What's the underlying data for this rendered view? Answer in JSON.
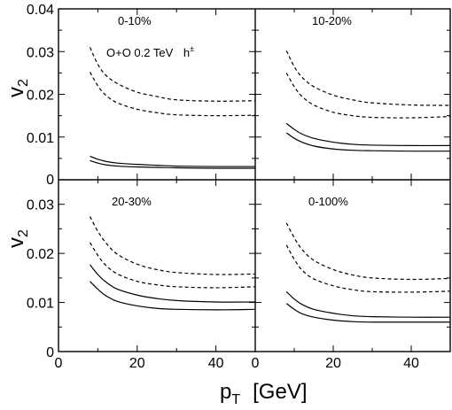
{
  "figure": {
    "annotation_main": "O+O 0.2 TeV",
    "annotation_particle": "h",
    "annotation_charge": "±",
    "ylabel_main": "v",
    "ylabel_sub": "2",
    "xlabel_main": "p",
    "xlabel_sub": "T",
    "xlabel_unit": "[GeV]",
    "xticks": [
      "0",
      "20",
      "40"
    ],
    "yticks_top": [
      "0",
      "0.01",
      "0.02",
      "0.03",
      "0.04"
    ],
    "yticks_bottom": [
      "0",
      "0.01",
      "0.02",
      "0.03"
    ]
  },
  "chart_data": [
    {
      "type": "line",
      "panel_label": "0-10%",
      "xlim": [
        0,
        50
      ],
      "ylim": [
        0,
        0.04
      ],
      "xlabel": "pT [GeV]",
      "ylabel": "v2",
      "series": [
        {
          "style": "dashed",
          "x": [
            8,
            10,
            12,
            15,
            20,
            25,
            30,
            40,
            50
          ],
          "y": [
            0.031,
            0.027,
            0.0245,
            0.0225,
            0.0205,
            0.0195,
            0.0187,
            0.0184,
            0.0185
          ]
        },
        {
          "style": "dashed",
          "x": [
            8,
            10,
            12,
            15,
            20,
            25,
            30,
            40,
            50
          ],
          "y": [
            0.0252,
            0.022,
            0.0198,
            0.018,
            0.0165,
            0.0157,
            0.0152,
            0.015,
            0.0151
          ]
        },
        {
          "style": "solid",
          "x": [
            8,
            10,
            12,
            15,
            20,
            25,
            30,
            40,
            50
          ],
          "y": [
            0.0055,
            0.0048,
            0.0043,
            0.0039,
            0.0036,
            0.0034,
            0.0032,
            0.0031,
            0.0031
          ]
        },
        {
          "style": "solid",
          "x": [
            8,
            10,
            12,
            15,
            20,
            25,
            30,
            40,
            50
          ],
          "y": [
            0.0045,
            0.0039,
            0.0035,
            0.0032,
            0.003,
            0.0029,
            0.0028,
            0.0027,
            0.0027
          ]
        }
      ]
    },
    {
      "type": "line",
      "panel_label": "10-20%",
      "xlim": [
        0,
        50
      ],
      "ylim": [
        0,
        0.04
      ],
      "xlabel": "pT [GeV]",
      "ylabel": "v2",
      "series": [
        {
          "style": "dashed",
          "x": [
            8,
            10,
            12,
            15,
            20,
            25,
            30,
            40,
            50
          ],
          "y": [
            0.0302,
            0.0265,
            0.024,
            0.0218,
            0.0198,
            0.0187,
            0.018,
            0.0175,
            0.0174
          ]
        },
        {
          "style": "dashed",
          "x": [
            8,
            10,
            12,
            15,
            20,
            25,
            30,
            40,
            50
          ],
          "y": [
            0.025,
            0.0218,
            0.0195,
            0.0175,
            0.0158,
            0.015,
            0.0146,
            0.0145,
            0.0148
          ]
        },
        {
          "style": "solid",
          "x": [
            8,
            10,
            12,
            15,
            20,
            25,
            30,
            40,
            50
          ],
          "y": [
            0.0132,
            0.0118,
            0.0107,
            0.0097,
            0.0088,
            0.0083,
            0.0081,
            0.008,
            0.008
          ]
        },
        {
          "style": "solid",
          "x": [
            8,
            10,
            12,
            15,
            20,
            25,
            30,
            40,
            50
          ],
          "y": [
            0.011,
            0.0097,
            0.0088,
            0.0079,
            0.0072,
            0.0069,
            0.0068,
            0.0067,
            0.0067
          ]
        }
      ]
    },
    {
      "type": "line",
      "panel_label": "20-30%",
      "xlim": [
        0,
        50
      ],
      "ylim": [
        0,
        0.035
      ],
      "xlabel": "pT [GeV]",
      "ylabel": "v2",
      "series": [
        {
          "style": "dashed",
          "x": [
            8,
            10,
            12,
            15,
            20,
            25,
            30,
            40,
            50
          ],
          "y": [
            0.0275,
            0.0245,
            0.0222,
            0.0198,
            0.0178,
            0.0167,
            0.0161,
            0.0157,
            0.0158
          ]
        },
        {
          "style": "dashed",
          "x": [
            8,
            10,
            12,
            15,
            20,
            25,
            30,
            40,
            50
          ],
          "y": [
            0.0222,
            0.0196,
            0.0176,
            0.0158,
            0.0143,
            0.0136,
            0.0132,
            0.013,
            0.0132
          ]
        },
        {
          "style": "solid",
          "x": [
            8,
            10,
            12,
            15,
            20,
            25,
            30,
            40,
            50
          ],
          "y": [
            0.0177,
            0.0157,
            0.0142,
            0.0127,
            0.0115,
            0.0108,
            0.0104,
            0.0101,
            0.0101
          ]
        },
        {
          "style": "solid",
          "x": [
            8,
            10,
            12,
            15,
            20,
            25,
            30,
            40,
            50
          ],
          "y": [
            0.0143,
            0.0127,
            0.0114,
            0.0102,
            0.0093,
            0.0088,
            0.0086,
            0.0085,
            0.0086
          ]
        }
      ]
    },
    {
      "type": "line",
      "panel_label": "0-100%",
      "xlim": [
        0,
        50
      ],
      "ylim": [
        0,
        0.035
      ],
      "xlabel": "pT [GeV]",
      "ylabel": "v2",
      "series": [
        {
          "style": "dashed",
          "x": [
            8,
            10,
            12,
            15,
            20,
            25,
            30,
            40,
            50
          ],
          "y": [
            0.0262,
            0.0232,
            0.0208,
            0.0186,
            0.0167,
            0.0156,
            0.015,
            0.0147,
            0.0149
          ]
        },
        {
          "style": "dashed",
          "x": [
            8,
            10,
            12,
            15,
            20,
            25,
            30,
            40,
            50
          ],
          "y": [
            0.0217,
            0.0188,
            0.0166,
            0.0148,
            0.0134,
            0.0126,
            0.0122,
            0.0121,
            0.0123
          ]
        },
        {
          "style": "solid",
          "x": [
            8,
            10,
            12,
            15,
            20,
            25,
            30,
            40,
            50
          ],
          "y": [
            0.0122,
            0.0107,
            0.0096,
            0.0086,
            0.0078,
            0.0073,
            0.0071,
            0.007,
            0.007
          ]
        },
        {
          "style": "solid",
          "x": [
            8,
            10,
            12,
            15,
            20,
            25,
            30,
            40,
            50
          ],
          "y": [
            0.0098,
            0.0086,
            0.0077,
            0.007,
            0.0064,
            0.0061,
            0.006,
            0.006,
            0.006
          ]
        }
      ]
    }
  ]
}
